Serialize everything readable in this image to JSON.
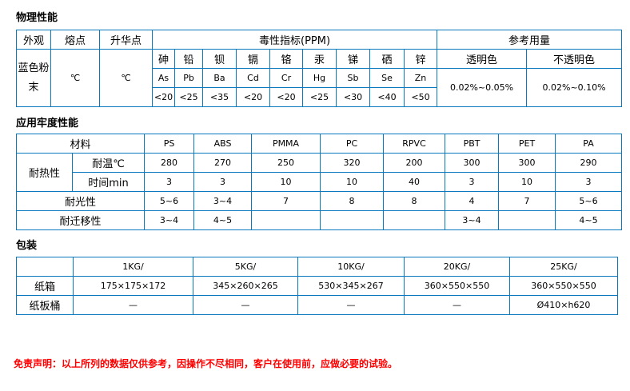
{
  "physical": {
    "title": "物理性能",
    "headers": {
      "appearance": "外观",
      "melting": "熔点",
      "sublimation": "升华点",
      "toxicity": "毒性指标(PPM)",
      "dosage": "参考用量"
    },
    "appearance": "蓝色粉末",
    "melting": "℃",
    "sublimation": "℃",
    "elements": [
      [
        "砷",
        "As",
        "<20"
      ],
      [
        "铅",
        "Pb",
        "<25"
      ],
      [
        "钡",
        "Ba",
        "<35"
      ],
      [
        "镉",
        "Cd",
        "<20"
      ],
      [
        "铬",
        "Cr",
        "<20"
      ],
      [
        "汞",
        "Hg",
        "<25"
      ],
      [
        "锑",
        "Sb",
        "<30"
      ],
      [
        "硒",
        "Se",
        "<40"
      ],
      [
        "锌",
        "Zn",
        "<50"
      ]
    ],
    "dosage": [
      {
        "label": "透明色",
        "value": "0.02%~0.05%"
      },
      {
        "label": "不透明色",
        "value": "0.02%~0.10%"
      }
    ]
  },
  "fastness": {
    "title": "应用牢度性能",
    "material_label": "材料",
    "materials": [
      "PS",
      "ABS",
      "PMMA",
      "PC",
      "RPVC",
      "PBT",
      "PET",
      "PA"
    ],
    "heat_label": "耐热性",
    "temp_label": "耐温℃",
    "time_label": "时间min",
    "temp": [
      "280",
      "270",
      "250",
      "320",
      "200",
      "300",
      "300",
      "290"
    ],
    "time": [
      "3",
      "3",
      "10",
      "10",
      "40",
      "3",
      "10",
      "3"
    ],
    "light_label": "耐光性",
    "light": [
      "5~6",
      "3~4",
      "7",
      "8",
      "8",
      "4",
      "7",
      "5~6"
    ],
    "migration_label": "耐迁移性",
    "migration": [
      "3~4",
      "4~5",
      "",
      "",
      "",
      "3~4",
      "",
      "4~5"
    ]
  },
  "packaging": {
    "title": "包装",
    "sizes": [
      "1KG/",
      "5KG/",
      "10KG/",
      "20KG/",
      "25KG/"
    ],
    "rows": [
      {
        "label": "纸箱",
        "values": [
          "175×175×172",
          "345×260×265",
          "530×345×267",
          "360×550×550",
          "360×550×550"
        ]
      },
      {
        "label": "纸板桶",
        "values": [
          "—",
          "—",
          "—",
          "—",
          "Ø410×h620"
        ]
      }
    ]
  },
  "disclaimer": "免责声明：以上所列的数据仅供参考，因操作不尽相同，客户在使用前，应做必要的试验。"
}
